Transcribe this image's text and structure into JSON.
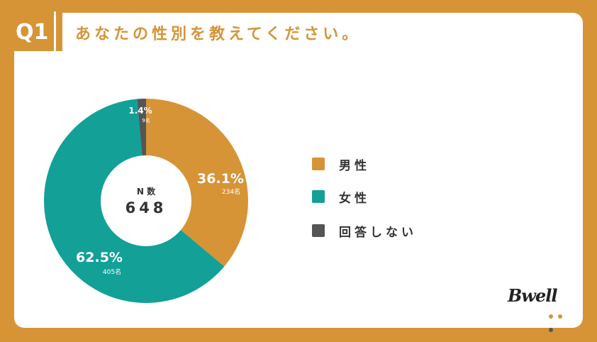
{
  "header": {
    "badge": "Q1",
    "title": "あなたの性別を教えてください。"
  },
  "chart_data": {
    "type": "pie",
    "center_label": "N 数",
    "center_value": "648",
    "slices": [
      {
        "name": "男性",
        "percent": 36.1,
        "percent_label": "36.1%",
        "count": 234,
        "count_label": "234名",
        "color": "#D69437"
      },
      {
        "name": "女性",
        "percent": 62.5,
        "percent_label": "62.5%",
        "count": 405,
        "count_label": "405名",
        "color": "#12A097"
      },
      {
        "name": "回答しない",
        "percent": 1.4,
        "percent_label": "1.4%",
        "count": 9,
        "count_label": "9名",
        "color": "#555555"
      }
    ]
  },
  "legend": {
    "items": [
      {
        "label": "男性",
        "color": "#D69437"
      },
      {
        "label": "女性",
        "color": "#12A097"
      },
      {
        "label": "回答しない",
        "color": "#555555"
      }
    ]
  },
  "logo": {
    "text": "Bwell",
    "dot_colors": [
      "#D69437",
      "#D69437",
      "#555555"
    ]
  }
}
